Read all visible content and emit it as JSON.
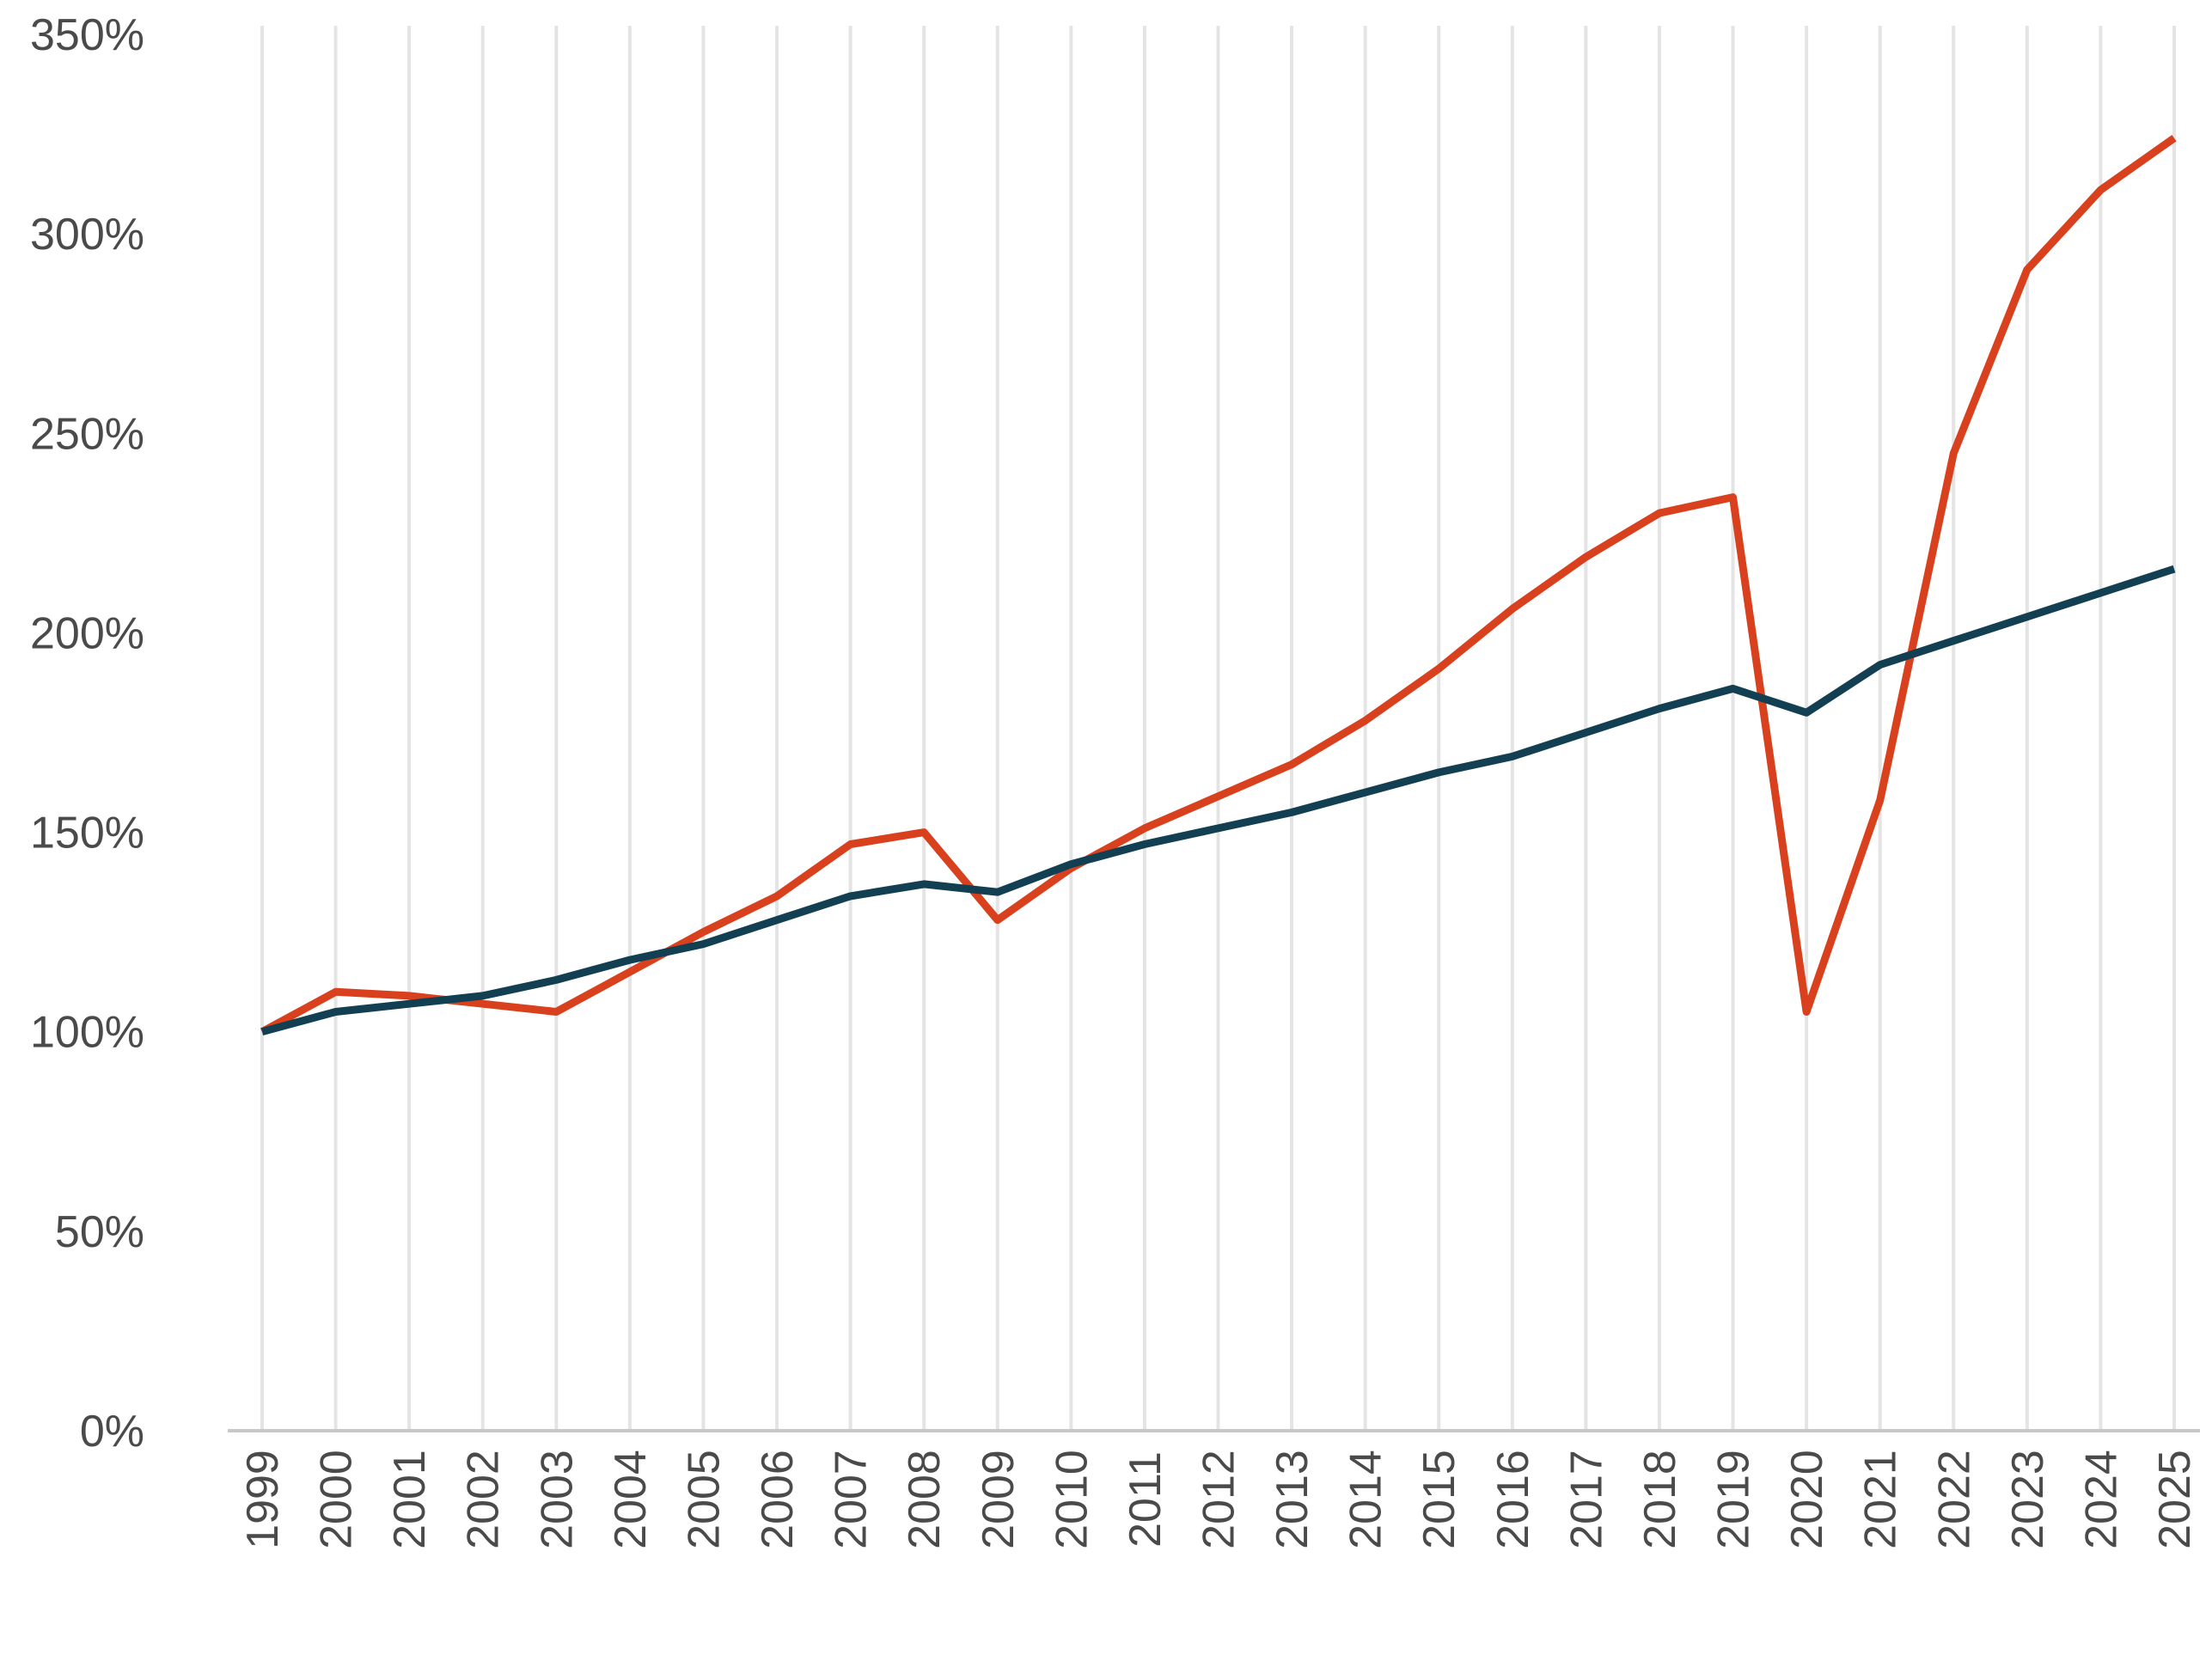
{
  "chart_data": {
    "type": "line",
    "title": "",
    "xlabel": "",
    "ylabel": "",
    "ylim": [
      0,
      350
    ],
    "y_ticks": [
      {
        "value": 0,
        "label": "0%"
      },
      {
        "value": 50,
        "label": "50%"
      },
      {
        "value": 100,
        "label": "100%"
      },
      {
        "value": 150,
        "label": "150%"
      },
      {
        "value": 200,
        "label": "200%"
      },
      {
        "value": 250,
        "label": "250%"
      },
      {
        "value": 300,
        "label": "300%"
      },
      {
        "value": 350,
        "label": "350%"
      }
    ],
    "categories": [
      "1999",
      "2000",
      "2001",
      "2002",
      "2003",
      "2004",
      "2005",
      "2006",
      "2007",
      "2008",
      "2009",
      "2010",
      "2011",
      "2012",
      "2013",
      "2014",
      "2015",
      "2016",
      "2017",
      "2018",
      "2019",
      "2020",
      "2021",
      "2022",
      "2023",
      "2024",
      "2025"
    ],
    "grid": "vertical",
    "legend": "none",
    "series": [
      {
        "color": "#d9411e",
        "values": [
          100,
          110,
          109,
          107,
          105,
          115,
          125,
          134,
          147,
          150,
          128,
          141,
          151,
          159,
          167,
          178,
          191,
          206,
          219,
          230,
          234,
          105,
          158,
          245,
          291,
          311,
          324
        ]
      },
      {
        "color": "#123f52",
        "values": [
          100,
          105,
          107,
          109,
          113,
          118,
          122,
          128,
          134,
          137,
          135,
          142,
          147,
          151,
          155,
          160,
          165,
          169,
          175,
          181,
          186,
          180,
          192,
          198,
          204,
          210,
          216
        ]
      }
    ]
  }
}
